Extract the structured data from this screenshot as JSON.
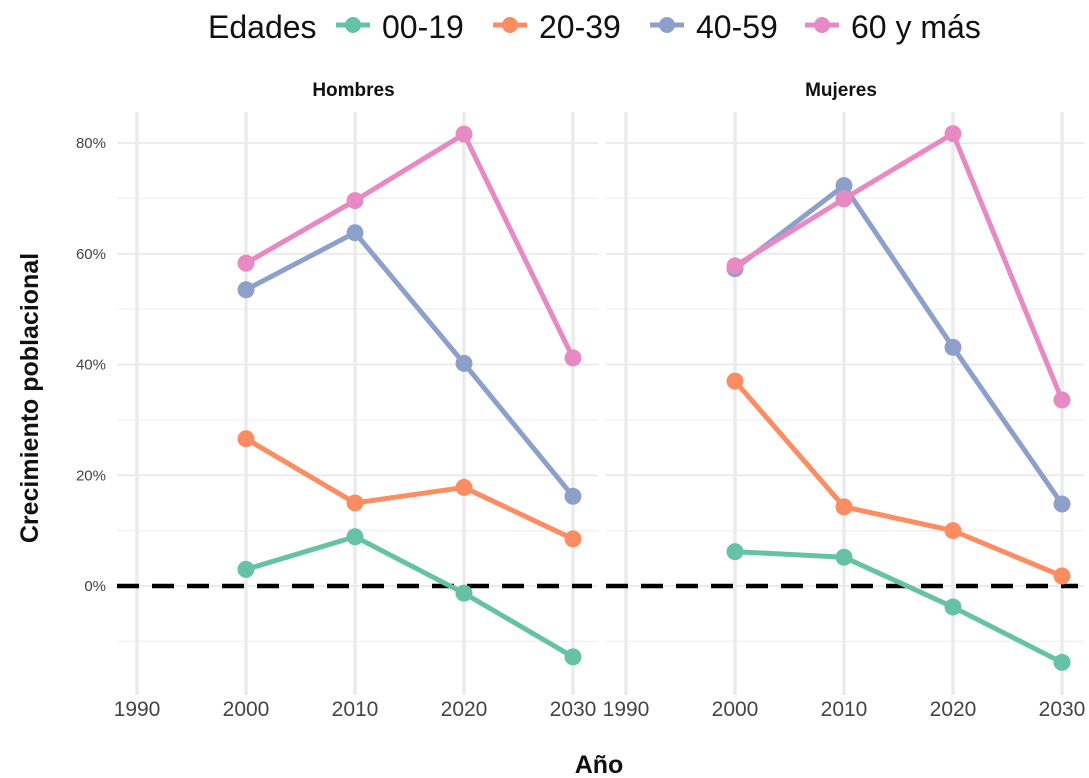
{
  "chart_data": {
    "type": "line",
    "legend": {
      "title": "Edades",
      "position": "top"
    },
    "xlabel": "Año",
    "ylabel": "Crecimiento poblacional",
    "x_ticks": [
      "1990",
      "2000",
      "2010",
      "2020",
      "2030"
    ],
    "y_ticks": [
      "0%",
      "20%",
      "40%",
      "60%",
      "80%"
    ],
    "xlim": [
      1985,
      2033
    ],
    "ylim": [
      -20,
      85
    ],
    "grid": true,
    "reference_line": {
      "y": 0,
      "style": "dashed",
      "color": "#000000"
    },
    "series_styles": [
      {
        "name": "00-19",
        "color": "#66c2a5"
      },
      {
        "name": "20-39",
        "color": "#fc8d62"
      },
      {
        "name": "40-59",
        "color": "#8da0cb"
      },
      {
        "name": "60 y más",
        "color": "#e78ac3"
      }
    ],
    "facets": [
      {
        "title": "Hombres",
        "x": [
          2000,
          2010,
          2020,
          2030
        ],
        "series": [
          {
            "name": "00-19",
            "values": [
              3.0,
              8.9,
              -1.3,
              -12.8
            ]
          },
          {
            "name": "20-39",
            "values": [
              26.6,
              15.0,
              17.8,
              8.5
            ]
          },
          {
            "name": "40-59",
            "values": [
              53.5,
              63.8,
              40.2,
              16.2
            ]
          },
          {
            "name": "60 y más",
            "values": [
              58.3,
              69.6,
              81.6,
              41.2
            ]
          }
        ]
      },
      {
        "title": "Mujeres",
        "x": [
          2000,
          2010,
          2020,
          2030
        ],
        "series": [
          {
            "name": "00-19",
            "values": [
              6.2,
              5.2,
              -3.8,
              -13.8
            ]
          },
          {
            "name": "20-39",
            "values": [
              37.0,
              14.3,
              10.0,
              1.8
            ]
          },
          {
            "name": "40-59",
            "values": [
              57.3,
              72.3,
              43.1,
              14.8
            ]
          },
          {
            "name": "60 y más",
            "values": [
              57.8,
              69.9,
              81.7,
              33.6
            ]
          }
        ]
      }
    ]
  }
}
